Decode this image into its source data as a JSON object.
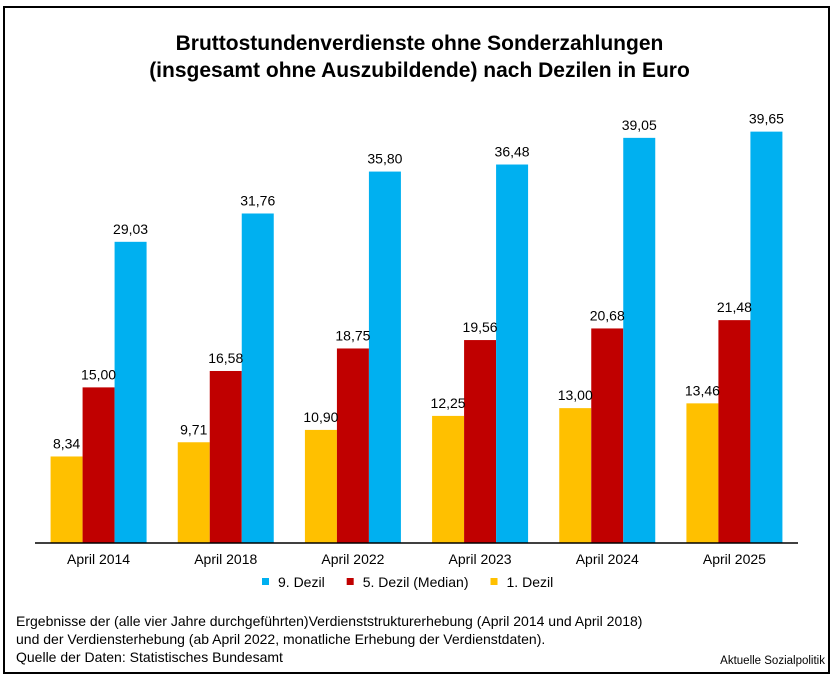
{
  "chart_data": {
    "type": "bar",
    "title": "Bruttostundenverdienste ohne Sonderzahlungen (insgesamt ohne Auszubildende) nach Dezilen in Euro",
    "title_lines": [
      "Bruttostundenverdienste ohne Sonderzahlungen",
      "(insgesamt ohne Auszubildende) nach Dezilen in Euro"
    ],
    "xlabel": "",
    "ylabel": "",
    "ylim": [
      0,
      40
    ],
    "grid": false,
    "legend_position": "bottom",
    "categories": [
      "April 2014",
      "April 2018",
      "April 2022",
      "April 2023",
      "April 2024",
      "April 2025"
    ],
    "series": [
      {
        "name": "1. Dezil",
        "color": "#FFC000",
        "values": [
          8.34,
          9.71,
          10.9,
          12.25,
          13.0,
          13.46
        ],
        "labels": [
          "8,34",
          "9,71",
          "10,90",
          "12,25",
          "13,00",
          "13,46"
        ]
      },
      {
        "name": "5. Dezil (Median)",
        "color": "#C00000",
        "values": [
          15.0,
          16.58,
          18.75,
          19.56,
          20.68,
          21.48
        ],
        "labels": [
          "15,00",
          "16,58",
          "18,75",
          "19,56",
          "20,68",
          "21,48"
        ]
      },
      {
        "name": "9. Dezil",
        "color": "#00B0F0",
        "values": [
          29.03,
          31.76,
          35.8,
          36.48,
          39.05,
          39.65
        ],
        "labels": [
          "29,03",
          "31,76",
          "35,80",
          "36,48",
          "39,05",
          "39,65"
        ]
      }
    ],
    "legend_order": [
      2,
      1,
      0
    ]
  },
  "footer": {
    "lines": [
      "Ergebnisse der (alle vier Jahre durchgeführten)Verdienststrukturerhebung (April 2014 und April 2018)",
      "und der Verdiensterhebung (ab April 2022, monatliche Erhebung der Verdienstdaten).",
      "Quelle der Daten: Statistisches Bundesamt"
    ],
    "credit": "Aktuelle Sozialpolitik"
  }
}
